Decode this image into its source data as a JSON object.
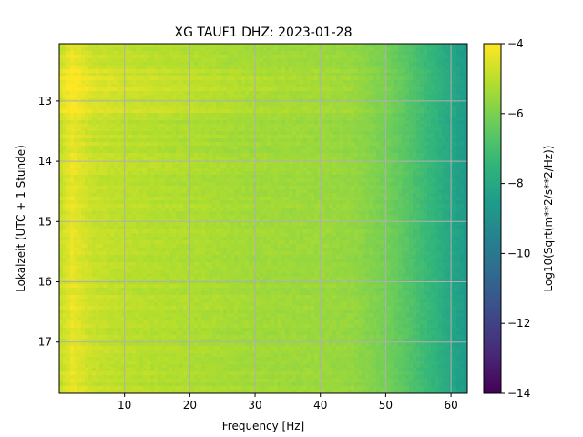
{
  "chart_data": {
    "type": "heatmap",
    "title": "XG TAUF1  DHZ: 2023-01-28",
    "xlabel": "Frequency [Hz]",
    "ylabel": "Lokalzeit (UTC + 1 Stunde)",
    "xlim": [
      0.0,
      62.5
    ],
    "ylim": [
      17.85,
      12.05
    ],
    "x_ticks": [
      10,
      20,
      30,
      40,
      50,
      60
    ],
    "y_ticks": [
      13,
      14,
      15,
      16,
      17
    ],
    "grid": true,
    "colorbar": {
      "label": "Log10(Sqrt(m**2/s**2/Hz))",
      "range": [
        -14,
        -4
      ],
      "ticks": [
        -4,
        -6,
        -8,
        -10,
        -12,
        -14
      ],
      "tick_labels": [
        "−4",
        "−6",
        "−8",
        "−10",
        "−12",
        "−14"
      ],
      "colormap": "viridis"
    },
    "spectral_profile": {
      "frequency_hz": [
        0,
        2,
        5,
        10,
        20,
        30,
        40,
        45,
        48,
        50,
        53,
        55,
        58,
        60,
        62.5
      ],
      "log10_amplitude": [
        -4.9,
        -4.3,
        -4.8,
        -5.0,
        -5.2,
        -5.4,
        -5.5,
        -5.6,
        -5.9,
        -6.1,
        -6.6,
        -7.0,
        -7.6,
        -8.1,
        -8.6
      ]
    },
    "bright_band": {
      "from": 12.45,
      "to": 13.2,
      "offset": 0.4
    }
  }
}
